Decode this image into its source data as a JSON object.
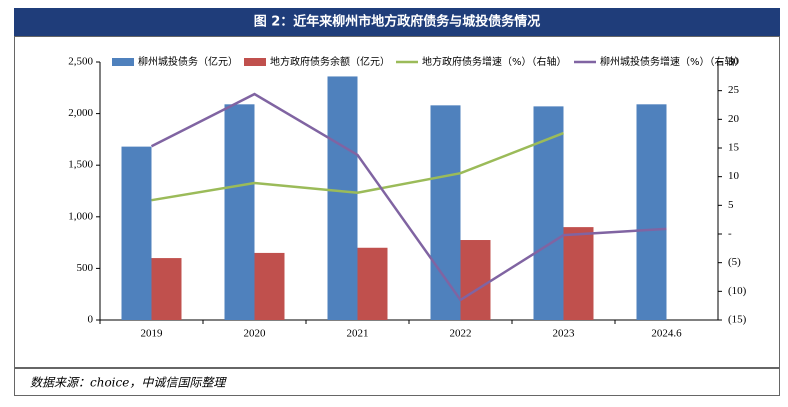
{
  "chart_data": {
    "type": "bar",
    "title": "图 2：近年来柳州市地方政府债务与城投债务情况",
    "source": "数据来源：choice，中诚信国际整理",
    "categories": [
      "2019",
      "2020",
      "2021",
      "2022",
      "2023",
      "2024.6"
    ],
    "series": [
      {
        "name": "柳州城投债务（亿元）",
        "color": "#4f81bd",
        "type": "bar",
        "values": [
          1680,
          2090,
          2360,
          2080,
          2070,
          2090
        ]
      },
      {
        "name": "地方政府债务余额（亿元）",
        "color": "#c0504d",
        "type": "bar",
        "values": [
          600,
          650,
          700,
          775,
          900,
          null
        ]
      },
      {
        "name": "地方政府债务增速（%）（右轴）",
        "color": "#9bbb59",
        "type": "line",
        "axis": "y2",
        "values": [
          5.9,
          8.9,
          7.2,
          10.6,
          17.6,
          null
        ]
      },
      {
        "name": "柳州城投债务增速（%）（右轴）",
        "color": "#8064a2",
        "type": "line",
        "axis": "y2",
        "values": [
          15.3,
          24.4,
          13.8,
          -11.5,
          -0.2,
          0.9
        ]
      }
    ],
    "ylim": [
      0,
      2500
    ],
    "yticks": [
      0,
      500,
      {
        "value": 1000,
        "label": "1,000"
      },
      {
        "value": 1500,
        "label": "1,500"
      },
      {
        "value": 2000,
        "label": "2,000"
      },
      {
        "value": 2500,
        "label": "2,500"
      }
    ],
    "y2lim": [
      -15,
      30
    ],
    "y2ticks": [
      {
        "value": -15,
        "label": "(15)"
      },
      {
        "value": -10,
        "label": "(10)"
      },
      {
        "value": -5,
        "label": "(5)"
      },
      {
        "value": 0,
        "label": "-"
      },
      5,
      10,
      15,
      20,
      25,
      30
    ],
    "grid": false,
    "legend": "top"
  }
}
